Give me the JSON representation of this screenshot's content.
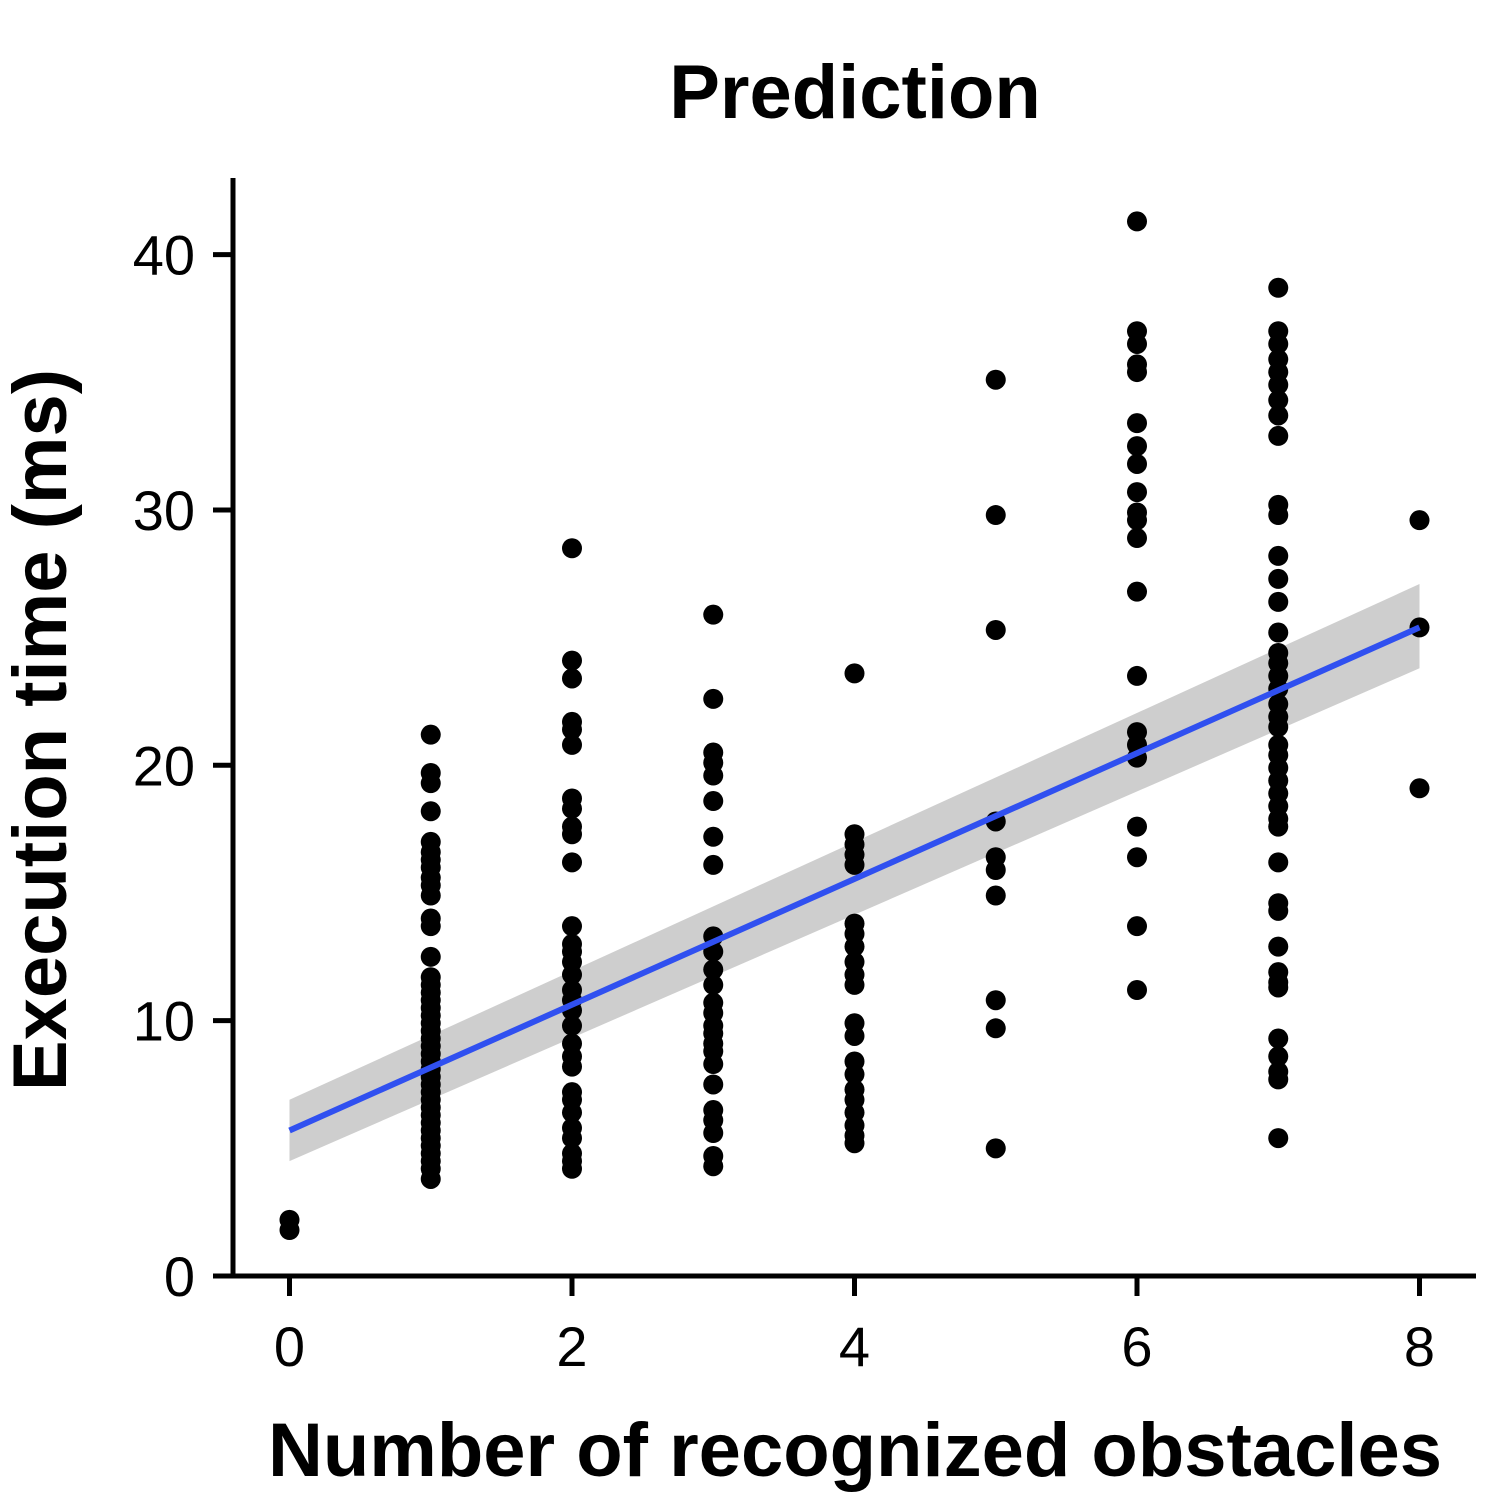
{
  "chart_data": {
    "type": "scatter",
    "title": "Prediction",
    "xlabel": "Number of recognized obstacles",
    "ylabel": "Execution time (ms)",
    "xlim": [
      -0.4,
      8.4
    ],
    "ylim": [
      0,
      43
    ],
    "xticks": [
      0,
      2,
      4,
      6,
      8
    ],
    "xtick_labels": [
      "0",
      "2",
      "4",
      "6",
      "8"
    ],
    "yticks": [
      0,
      10,
      20,
      30,
      40
    ],
    "ytick_labels": [
      "0",
      "10",
      "20",
      "30",
      "40"
    ],
    "grid": false,
    "legend": "none",
    "colors": {
      "points": "#000000",
      "fit_line": "#3050f0",
      "ci_band": "#bdbdbd"
    },
    "series": [
      {
        "points": [
          [
            0,
            2.2
          ],
          [
            0,
            1.8
          ],
          [
            1,
            21.2
          ],
          [
            1,
            19.7
          ],
          [
            1,
            19.3
          ],
          [
            1,
            18.2
          ],
          [
            1,
            17.0
          ],
          [
            1,
            16.6
          ],
          [
            1,
            16.3
          ],
          [
            1,
            16.0
          ],
          [
            1,
            15.6
          ],
          [
            1,
            15.3
          ],
          [
            1,
            14.9
          ],
          [
            1,
            14.0
          ],
          [
            1,
            13.7
          ],
          [
            1,
            12.5
          ],
          [
            1,
            11.7
          ],
          [
            1,
            11.4
          ],
          [
            1,
            11.1
          ],
          [
            1,
            10.8
          ],
          [
            1,
            10.5
          ],
          [
            1,
            10.2
          ],
          [
            1,
            9.9
          ],
          [
            1,
            9.6
          ],
          [
            1,
            9.3
          ],
          [
            1,
            9.0
          ],
          [
            1,
            8.7
          ],
          [
            1,
            8.4
          ],
          [
            1,
            8.1
          ],
          [
            1,
            7.8
          ],
          [
            1,
            7.5
          ],
          [
            1,
            7.2
          ],
          [
            1,
            6.9
          ],
          [
            1,
            6.6
          ],
          [
            1,
            6.3
          ],
          [
            1,
            6.0
          ],
          [
            1,
            5.7
          ],
          [
            1,
            5.4
          ],
          [
            1,
            5.1
          ],
          [
            1,
            4.8
          ],
          [
            1,
            4.5
          ],
          [
            1,
            4.2
          ],
          [
            1,
            3.8
          ],
          [
            2,
            28.5
          ],
          [
            2,
            24.1
          ],
          [
            2,
            23.4
          ],
          [
            2,
            21.7
          ],
          [
            2,
            21.4
          ],
          [
            2,
            20.8
          ],
          [
            2,
            18.7
          ],
          [
            2,
            18.3
          ],
          [
            2,
            17.6
          ],
          [
            2,
            17.3
          ],
          [
            2,
            16.2
          ],
          [
            2,
            13.7
          ],
          [
            2,
            13.0
          ],
          [
            2,
            12.7
          ],
          [
            2,
            12.3
          ],
          [
            2,
            11.8
          ],
          [
            2,
            11.2
          ],
          [
            2,
            10.8
          ],
          [
            2,
            10.4
          ],
          [
            2,
            9.8
          ],
          [
            2,
            9.1
          ],
          [
            2,
            8.6
          ],
          [
            2,
            8.2
          ],
          [
            2,
            7.2
          ],
          [
            2,
            6.9
          ],
          [
            2,
            6.4
          ],
          [
            2,
            5.8
          ],
          [
            2,
            5.4
          ],
          [
            2,
            4.8
          ],
          [
            2,
            4.5
          ],
          [
            2,
            4.2
          ],
          [
            3,
            25.9
          ],
          [
            3,
            22.6
          ],
          [
            3,
            20.5
          ],
          [
            3,
            20.1
          ],
          [
            3,
            19.6
          ],
          [
            3,
            18.6
          ],
          [
            3,
            17.2
          ],
          [
            3,
            16.1
          ],
          [
            3,
            13.3
          ],
          [
            3,
            12.7
          ],
          [
            3,
            12.0
          ],
          [
            3,
            11.4
          ],
          [
            3,
            10.7
          ],
          [
            3,
            10.3
          ],
          [
            3,
            9.8
          ],
          [
            3,
            9.5
          ],
          [
            3,
            9.1
          ],
          [
            3,
            8.8
          ],
          [
            3,
            8.3
          ],
          [
            3,
            7.5
          ],
          [
            3,
            6.5
          ],
          [
            3,
            6.1
          ],
          [
            3,
            5.6
          ],
          [
            3,
            4.7
          ],
          [
            3,
            4.3
          ],
          [
            4,
            23.6
          ],
          [
            4,
            17.3
          ],
          [
            4,
            16.9
          ],
          [
            4,
            16.5
          ],
          [
            4,
            16.1
          ],
          [
            4,
            13.8
          ],
          [
            4,
            13.4
          ],
          [
            4,
            12.9
          ],
          [
            4,
            12.3
          ],
          [
            4,
            11.8
          ],
          [
            4,
            11.4
          ],
          [
            4,
            9.9
          ],
          [
            4,
            9.4
          ],
          [
            4,
            8.4
          ],
          [
            4,
            7.9
          ],
          [
            4,
            7.3
          ],
          [
            4,
            6.9
          ],
          [
            4,
            6.4
          ],
          [
            4,
            5.9
          ],
          [
            4,
            5.5
          ],
          [
            4,
            5.2
          ],
          [
            5,
            35.1
          ],
          [
            5,
            29.8
          ],
          [
            5,
            25.3
          ],
          [
            5,
            17.8
          ],
          [
            5,
            16.4
          ],
          [
            5,
            15.9
          ],
          [
            5,
            14.9
          ],
          [
            5,
            10.8
          ],
          [
            5,
            9.7
          ],
          [
            5,
            5.0
          ],
          [
            6,
            41.3
          ],
          [
            6,
            37.0
          ],
          [
            6,
            36.5
          ],
          [
            6,
            35.7
          ],
          [
            6,
            35.4
          ],
          [
            6,
            33.4
          ],
          [
            6,
            32.5
          ],
          [
            6,
            31.8
          ],
          [
            6,
            30.7
          ],
          [
            6,
            29.9
          ],
          [
            6,
            29.6
          ],
          [
            6,
            28.9
          ],
          [
            6,
            26.8
          ],
          [
            6,
            23.5
          ],
          [
            6,
            21.3
          ],
          [
            6,
            20.8
          ],
          [
            6,
            20.3
          ],
          [
            6,
            17.6
          ],
          [
            6,
            16.4
          ],
          [
            6,
            13.7
          ],
          [
            6,
            11.2
          ],
          [
            7,
            38.7
          ],
          [
            7,
            37.0
          ],
          [
            7,
            36.5
          ],
          [
            7,
            35.9
          ],
          [
            7,
            35.4
          ],
          [
            7,
            34.9
          ],
          [
            7,
            34.3
          ],
          [
            7,
            33.7
          ],
          [
            7,
            32.9
          ],
          [
            7,
            30.2
          ],
          [
            7,
            29.8
          ],
          [
            7,
            28.2
          ],
          [
            7,
            27.3
          ],
          [
            7,
            26.4
          ],
          [
            7,
            25.2
          ],
          [
            7,
            24.4
          ],
          [
            7,
            24.0
          ],
          [
            7,
            23.5
          ],
          [
            7,
            23.0
          ],
          [
            7,
            22.4
          ],
          [
            7,
            21.9
          ],
          [
            7,
            21.5
          ],
          [
            7,
            20.8
          ],
          [
            7,
            20.4
          ],
          [
            7,
            19.9
          ],
          [
            7,
            19.4
          ],
          [
            7,
            18.9
          ],
          [
            7,
            18.4
          ],
          [
            7,
            17.9
          ],
          [
            7,
            17.6
          ],
          [
            7,
            16.2
          ],
          [
            7,
            14.6
          ],
          [
            7,
            14.3
          ],
          [
            7,
            12.9
          ],
          [
            7,
            11.9
          ],
          [
            7,
            11.5
          ],
          [
            7,
            11.3
          ],
          [
            7,
            9.3
          ],
          [
            7,
            8.6
          ],
          [
            7,
            8.0
          ],
          [
            7,
            7.7
          ],
          [
            7,
            5.4
          ],
          [
            8,
            29.6
          ],
          [
            8,
            25.4
          ],
          [
            8,
            19.1
          ]
        ]
      }
    ],
    "fit": {
      "type": "linear",
      "x": [
        0,
        8
      ],
      "y": [
        5.7,
        25.4
      ],
      "ci_lower": [
        4.5,
        23.8
      ],
      "ci_upper": [
        6.9,
        27.1
      ]
    }
  }
}
